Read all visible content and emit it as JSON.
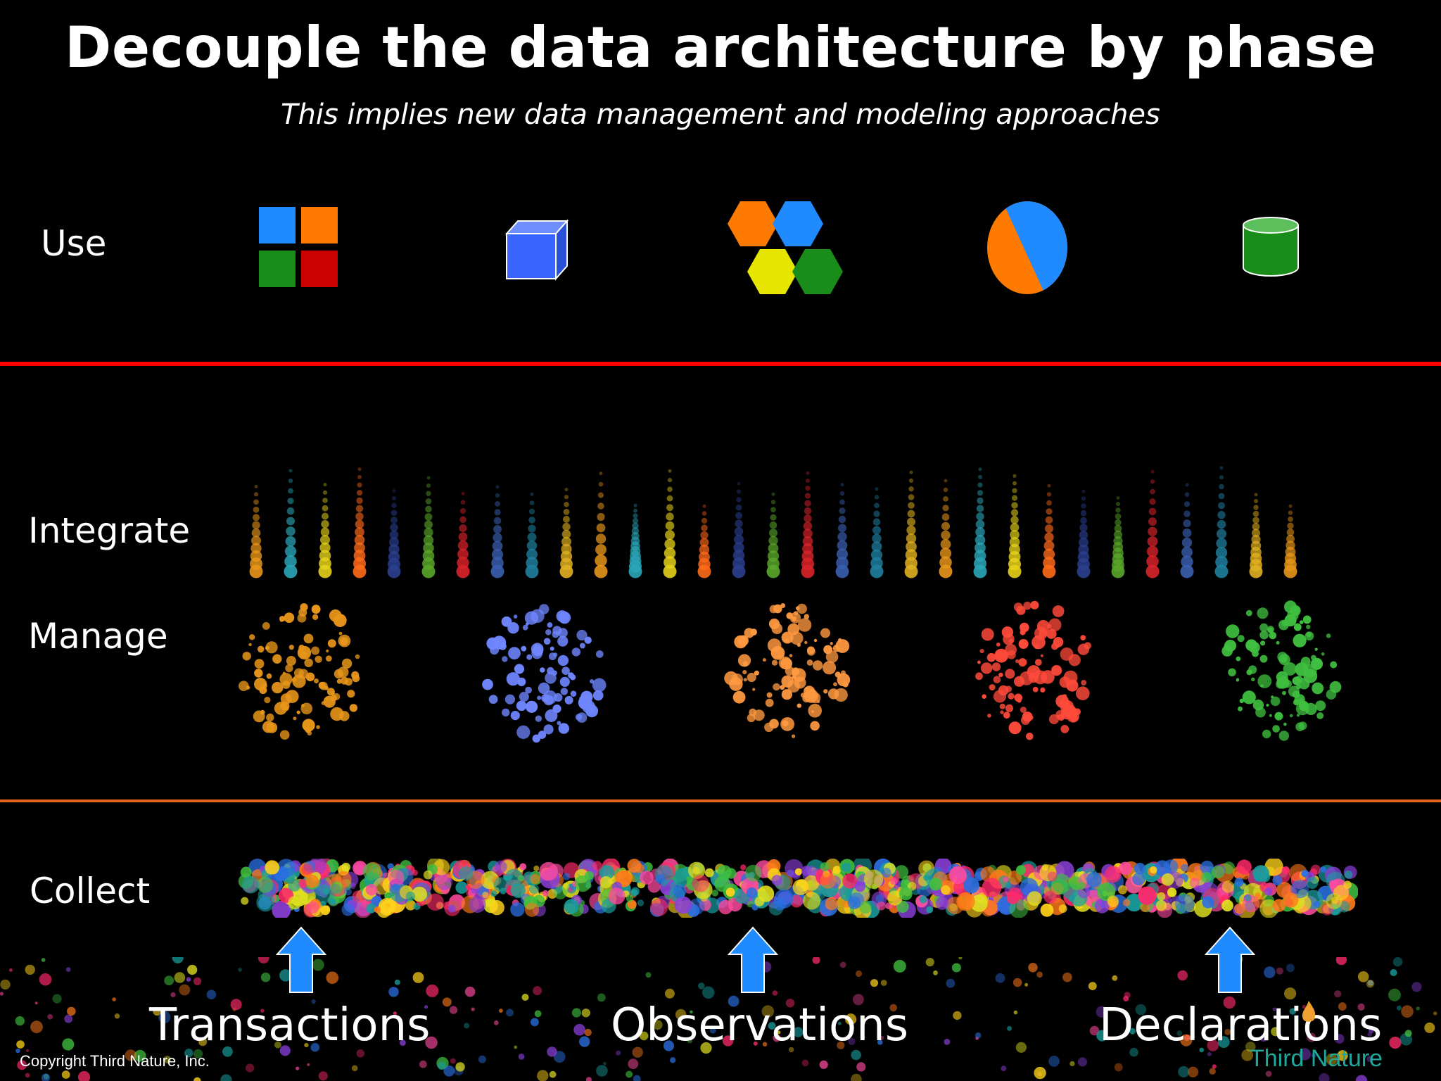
{
  "slide": {
    "title": "Decouple the data architecture by phase",
    "subtitle": "This implies new data management and modeling approaches"
  },
  "layers": {
    "use": "Use",
    "integrate": "Integrate",
    "manage": "Manage",
    "collect": "Collect"
  },
  "sources": [
    "Transactions",
    "Observations",
    "Declarations"
  ],
  "footer": {
    "copyright": "Copyright Third Nature, Inc.",
    "brand": "Third Nature"
  },
  "colors": {
    "use_divider": "#ff0000",
    "manage_divider": "#e8641a",
    "arrow": "#1f8bff",
    "cluster_colors": [
      "#e8961a",
      "#6f86ff",
      "#ff9940",
      "#ff4a3a",
      "#3fbf3f"
    ]
  },
  "icons": [
    "grid-icon",
    "cube-icon",
    "hexagons-icon",
    "pie-icon",
    "database-icon"
  ]
}
